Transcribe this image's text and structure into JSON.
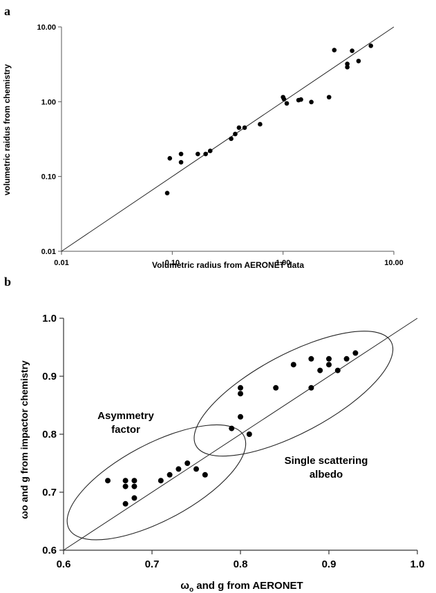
{
  "chart_data": [
    {
      "type": "scatter",
      "panel_label": "a",
      "xlabel": "Volumetric radius from AERONET data",
      "ylabel": "volumetric raidus from chemistry",
      "x_scale": "log",
      "y_scale": "log",
      "xlim": [
        0.01,
        10.0
      ],
      "ylim": [
        0.01,
        10.0
      ],
      "x_ticks": [
        "0.01",
        "0.10",
        "1.00",
        "10.00"
      ],
      "y_ticks": [
        "0.01",
        "0.10",
        "1.00",
        "10.00"
      ],
      "x_tick_values": [
        0.01,
        0.1,
        1.0,
        10.0
      ],
      "y_tick_values": [
        0.01,
        0.1,
        1.0,
        10.0
      ],
      "reference_line": "1:1",
      "grid": false,
      "points": [
        {
          "x": 0.09,
          "y": 0.06
        },
        {
          "x": 0.095,
          "y": 0.175
        },
        {
          "x": 0.12,
          "y": 0.2
        },
        {
          "x": 0.12,
          "y": 0.155
        },
        {
          "x": 0.17,
          "y": 0.2
        },
        {
          "x": 0.2,
          "y": 0.2
        },
        {
          "x": 0.22,
          "y": 0.22
        },
        {
          "x": 0.34,
          "y": 0.32
        },
        {
          "x": 0.37,
          "y": 0.37
        },
        {
          "x": 0.4,
          "y": 0.45
        },
        {
          "x": 0.45,
          "y": 0.45
        },
        {
          "x": 0.62,
          "y": 0.5
        },
        {
          "x": 1.0,
          "y": 1.15
        },
        {
          "x": 1.02,
          "y": 1.08
        },
        {
          "x": 1.08,
          "y": 0.95
        },
        {
          "x": 1.38,
          "y": 1.05
        },
        {
          "x": 1.45,
          "y": 1.07
        },
        {
          "x": 1.8,
          "y": 0.99
        },
        {
          "x": 2.6,
          "y": 1.15
        },
        {
          "x": 2.9,
          "y": 4.9
        },
        {
          "x": 3.8,
          "y": 3.2
        },
        {
          "x": 3.8,
          "y": 2.9
        },
        {
          "x": 4.2,
          "y": 4.8
        },
        {
          "x": 4.8,
          "y": 3.5
        },
        {
          "x": 6.2,
          "y": 5.6
        }
      ]
    },
    {
      "type": "scatter",
      "panel_label": "b",
      "xlabel_main": "ω",
      "xlabel_sub": "o",
      "xlabel_rest": " and g from AERONET",
      "ylabel": "ωo and g from impactor  chemistry",
      "xlim": [
        0.6,
        1.0
      ],
      "ylim": [
        0.6,
        1.0
      ],
      "x_ticks": [
        "0.6",
        "0.7",
        "0.8",
        "0.9",
        "1.0"
      ],
      "y_ticks": [
        "0.6",
        "0.7",
        "0.8",
        "0.9",
        "1.0"
      ],
      "x_tick_values": [
        0.6,
        0.7,
        0.8,
        0.9,
        1.0
      ],
      "y_tick_values": [
        0.6,
        0.7,
        0.8,
        0.9,
        1.0
      ],
      "reference_line": "1:1",
      "grid": false,
      "annotations": [
        {
          "lines": [
            "Asymmetry",
            "factor"
          ]
        },
        {
          "lines": [
            "Single scattering",
            "albedo"
          ]
        }
      ],
      "groups": [
        {
          "name": "Asymmetry factor",
          "ellipse": {
            "cx": 0.705,
            "cy": 0.717,
            "rx_data": 0.112,
            "ry_data": 0.066,
            "angle_deg": -28
          },
          "points": [
            {
              "x": 0.65,
              "y": 0.72
            },
            {
              "x": 0.67,
              "y": 0.72
            },
            {
              "x": 0.67,
              "y": 0.71
            },
            {
              "x": 0.67,
              "y": 0.68
            },
            {
              "x": 0.68,
              "y": 0.72
            },
            {
              "x": 0.68,
              "y": 0.71
            },
            {
              "x": 0.68,
              "y": 0.69
            },
            {
              "x": 0.71,
              "y": 0.72
            },
            {
              "x": 0.72,
              "y": 0.73
            },
            {
              "x": 0.73,
              "y": 0.74
            },
            {
              "x": 0.74,
              "y": 0.75
            },
            {
              "x": 0.75,
              "y": 0.74
            },
            {
              "x": 0.76,
              "y": 0.73
            }
          ]
        },
        {
          "name": "Single scattering albedo",
          "ellipse": {
            "cx": 0.86,
            "cy": 0.87,
            "rx_data": 0.125,
            "ry_data": 0.068,
            "angle_deg": -28
          },
          "points": [
            {
              "x": 0.79,
              "y": 0.81
            },
            {
              "x": 0.8,
              "y": 0.88
            },
            {
              "x": 0.8,
              "y": 0.87
            },
            {
              "x": 0.8,
              "y": 0.83
            },
            {
              "x": 0.81,
              "y": 0.8
            },
            {
              "x": 0.84,
              "y": 0.88
            },
            {
              "x": 0.86,
              "y": 0.92
            },
            {
              "x": 0.88,
              "y": 0.93
            },
            {
              "x": 0.88,
              "y": 0.88
            },
            {
              "x": 0.89,
              "y": 0.91
            },
            {
              "x": 0.9,
              "y": 0.93
            },
            {
              "x": 0.9,
              "y": 0.92
            },
            {
              "x": 0.91,
              "y": 0.91
            },
            {
              "x": 0.92,
              "y": 0.93
            },
            {
              "x": 0.93,
              "y": 0.94
            }
          ]
        }
      ]
    }
  ]
}
